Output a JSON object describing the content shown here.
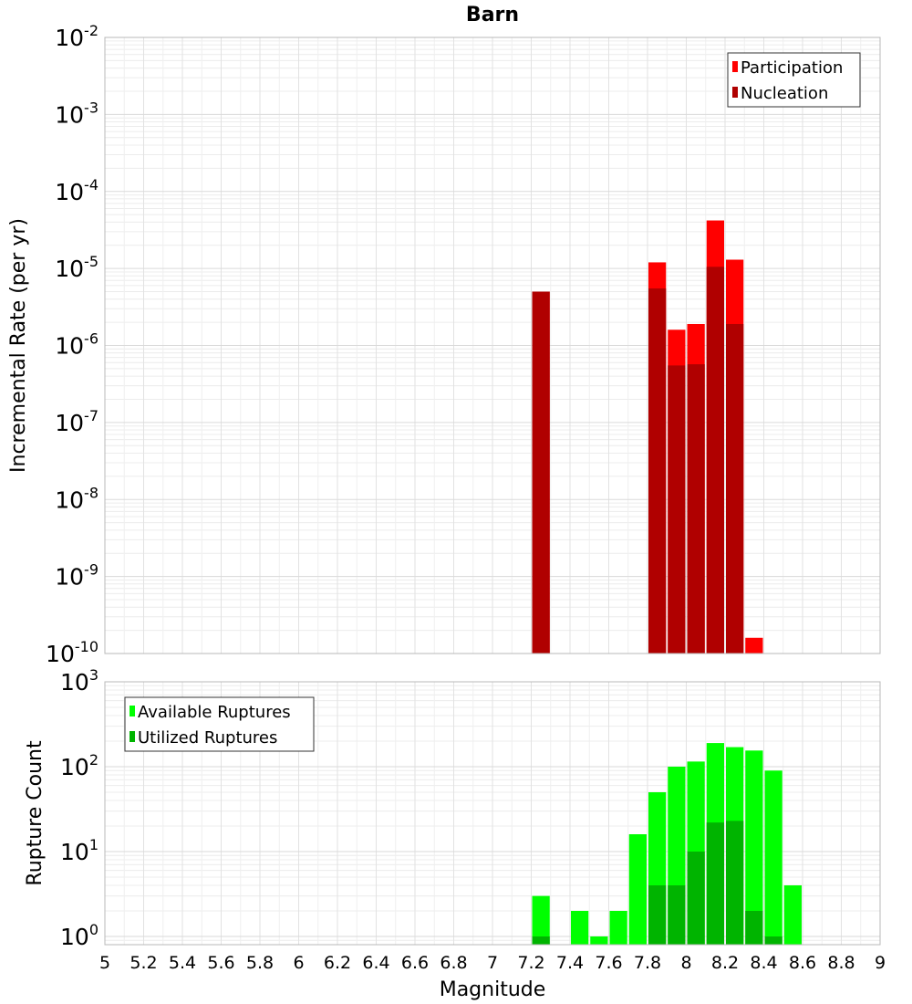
{
  "chart_data": [
    {
      "type": "bar",
      "title": "Barn",
      "xlabel": "Magnitude",
      "ylabel": "Incremental Rate (per yr)",
      "yscale": "log",
      "xlim": [
        5,
        9
      ],
      "ylim": [
        1e-10,
        0.01
      ],
      "bin_width": 0.1,
      "ytick_exponents": [
        -10,
        -9,
        -8,
        -7,
        -6,
        -5,
        -4,
        -3,
        -2
      ],
      "legend_position": "top-right",
      "series": [
        {
          "name": "Participation",
          "color": "#ff0000",
          "points": [
            {
              "x": 7.25,
              "y": 5e-06
            },
            {
              "x": 7.85,
              "y": 1.2e-05
            },
            {
              "x": 7.95,
              "y": 1.6e-06
            },
            {
              "x": 8.05,
              "y": 1.9e-06
            },
            {
              "x": 8.15,
              "y": 4.2e-05
            },
            {
              "x": 8.25,
              "y": 1.3e-05
            },
            {
              "x": 8.35,
              "y": 1.6e-10
            }
          ]
        },
        {
          "name": "Nucleation",
          "color": "#b00000",
          "points": [
            {
              "x": 7.25,
              "y": 5e-06
            },
            {
              "x": 7.85,
              "y": 5.5e-06
            },
            {
              "x": 7.95,
              "y": 5.5e-07
            },
            {
              "x": 8.05,
              "y": 5.7e-07
            },
            {
              "x": 8.15,
              "y": 1.05e-05
            },
            {
              "x": 8.25,
              "y": 1.9e-06
            }
          ]
        }
      ]
    },
    {
      "type": "bar",
      "title": "",
      "xlabel": "Magnitude",
      "ylabel": "Rupture Count",
      "yscale": "log",
      "xlim": [
        5,
        9
      ],
      "ylim": [
        0.8,
        1000
      ],
      "bin_width": 0.1,
      "ytick_exponents": [
        0,
        1,
        2,
        3
      ],
      "xticks": [
        "5",
        "5.2",
        "5.4",
        "5.6",
        "5.8",
        "6",
        "6.2",
        "6.4",
        "6.6",
        "6.8",
        "7",
        "7.2",
        "7.4",
        "7.6",
        "7.8",
        "8",
        "8.2",
        "8.4",
        "8.6",
        "8.8",
        "9"
      ],
      "legend_position": "top-left",
      "series": [
        {
          "name": "Available Ruptures",
          "color": "#00ff00",
          "points": [
            {
              "x": 7.25,
              "y": 3
            },
            {
              "x": 7.45,
              "y": 2
            },
            {
              "x": 7.55,
              "y": 1
            },
            {
              "x": 7.65,
              "y": 2
            },
            {
              "x": 7.75,
              "y": 16
            },
            {
              "x": 7.85,
              "y": 50
            },
            {
              "x": 7.95,
              "y": 100
            },
            {
              "x": 8.05,
              "y": 115
            },
            {
              "x": 8.15,
              "y": 190
            },
            {
              "x": 8.25,
              "y": 170
            },
            {
              "x": 8.35,
              "y": 155
            },
            {
              "x": 8.45,
              "y": 90
            },
            {
              "x": 8.55,
              "y": 4
            }
          ]
        },
        {
          "name": "Utilized Ruptures",
          "color": "#00b400",
          "points": [
            {
              "x": 7.25,
              "y": 1
            },
            {
              "x": 7.85,
              "y": 4
            },
            {
              "x": 7.95,
              "y": 4
            },
            {
              "x": 8.05,
              "y": 10
            },
            {
              "x": 8.15,
              "y": 22
            },
            {
              "x": 8.25,
              "y": 23
            },
            {
              "x": 8.35,
              "y": 2
            },
            {
              "x": 8.45,
              "y": 1
            }
          ]
        }
      ]
    }
  ]
}
